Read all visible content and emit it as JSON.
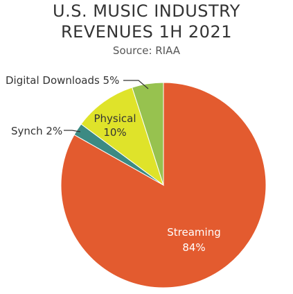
{
  "chart_data": {
    "type": "pie",
    "title_lines": [
      "U.S. MUSIC INDUSTRY",
      "REVENUES 1H 2021"
    ],
    "subtitle": "Source: RIAA",
    "slices": [
      {
        "label": "Streaming",
        "value_label": "84%",
        "value": 84,
        "color": "#E35B2F"
      },
      {
        "label": "Synch",
        "value_label": "2%",
        "value": 2,
        "color": "#3C8A83"
      },
      {
        "label": "Physical",
        "value_label": "10%",
        "value": 10,
        "color": "#DFE32A"
      },
      {
        "label": "Digital Downloads",
        "value_label": "5%",
        "value": 5,
        "color": "#97C24F"
      }
    ],
    "labels": {
      "streaming": "Streaming",
      "streaming_pct": "84%",
      "physical": "Physical",
      "physical_pct": "10%",
      "synch": "Synch 2%",
      "digital_downloads": "Digital Downloads 5%"
    }
  }
}
